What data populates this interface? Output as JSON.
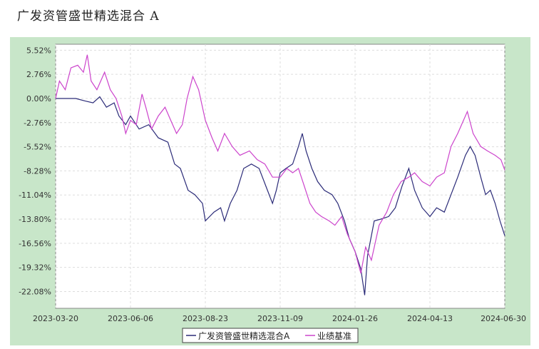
{
  "page": {
    "title": "广发资管盛世精选混合 A"
  },
  "colors": {
    "fund": "#2b2b78",
    "benchmark": "#cc44cc",
    "panel_bg": "#c8e6c9",
    "grid": "#dddddd"
  },
  "chart_data": {
    "type": "line",
    "title": "广发资管盛世精选混合 A",
    "xlabel": "",
    "ylabel": "",
    "x_ticks": [
      "2023-03-20",
      "2023-06-06",
      "2023-08-23",
      "2023-11-09",
      "2024-01-26",
      "2024-04-13",
      "2024-06-30"
    ],
    "y_ticks": [
      "5.52%",
      "2.76%",
      "0.00%",
      "-2.76%",
      "-5.52%",
      "-8.28%",
      "-11.04%",
      "-13.80%",
      "-16.56%",
      "-19.32%",
      "-22.08%"
    ],
    "ylim": [
      -24.0,
      6.2
    ],
    "xlim": [
      "2023-03-20",
      "2024-06-30"
    ],
    "grid": true,
    "legend_position": "bottom-center",
    "series": [
      {
        "name": "广发资管盛世精选混合A",
        "color": "#2b2b78",
        "points": [
          [
            "2023-03-20",
            0.0
          ],
          [
            "2023-03-30",
            0.0
          ],
          [
            "2023-04-10",
            0.0
          ],
          [
            "2023-04-20",
            -0.3
          ],
          [
            "2023-04-28",
            -0.5
          ],
          [
            "2023-05-05",
            0.2
          ],
          [
            "2023-05-12",
            -1.0
          ],
          [
            "2023-05-20",
            -0.5
          ],
          [
            "2023-05-25",
            -2.0
          ],
          [
            "2023-06-01",
            -3.0
          ],
          [
            "2023-06-06",
            -2.0
          ],
          [
            "2023-06-15",
            -3.5
          ],
          [
            "2023-06-25",
            -3.0
          ],
          [
            "2023-07-05",
            -4.5
          ],
          [
            "2023-07-15",
            -5.0
          ],
          [
            "2023-07-22",
            -7.5
          ],
          [
            "2023-07-28",
            -8.0
          ],
          [
            "2023-08-05",
            -10.5
          ],
          [
            "2023-08-12",
            -11.0
          ],
          [
            "2023-08-20",
            -12.0
          ],
          [
            "2023-08-23",
            -14.0
          ],
          [
            "2023-09-01",
            -13.0
          ],
          [
            "2023-09-08",
            -12.5
          ],
          [
            "2023-09-12",
            -14.0
          ],
          [
            "2023-09-18",
            -12.0
          ],
          [
            "2023-09-25",
            -10.5
          ],
          [
            "2023-10-02",
            -8.0
          ],
          [
            "2023-10-10",
            -7.5
          ],
          [
            "2023-10-18",
            -8.0
          ],
          [
            "2023-10-25",
            -10.0
          ],
          [
            "2023-11-01",
            -12.0
          ],
          [
            "2023-11-05",
            -10.5
          ],
          [
            "2023-11-09",
            -8.5
          ],
          [
            "2023-11-15",
            -8.0
          ],
          [
            "2023-11-22",
            -7.5
          ],
          [
            "2023-11-28",
            -5.5
          ],
          [
            "2023-12-02",
            -4.0
          ],
          [
            "2023-12-06",
            -6.0
          ],
          [
            "2023-12-12",
            -8.0
          ],
          [
            "2023-12-18",
            -9.5
          ],
          [
            "2023-12-25",
            -10.5
          ],
          [
            "2024-01-02",
            -11.0
          ],
          [
            "2024-01-08",
            -12.0
          ],
          [
            "2024-01-15",
            -14.0
          ],
          [
            "2024-01-20",
            -16.0
          ],
          [
            "2024-01-26",
            -17.5
          ],
          [
            "2024-02-01",
            -19.5
          ],
          [
            "2024-02-05",
            -22.5
          ],
          [
            "2024-02-08",
            -18.0
          ],
          [
            "2024-02-15",
            -14.0
          ],
          [
            "2024-02-22",
            -13.8
          ],
          [
            "2024-03-01",
            -13.5
          ],
          [
            "2024-03-08",
            -12.5
          ],
          [
            "2024-03-15",
            -10.0
          ],
          [
            "2024-03-22",
            -8.0
          ],
          [
            "2024-03-28",
            -10.5
          ],
          [
            "2024-04-05",
            -12.5
          ],
          [
            "2024-04-13",
            -13.5
          ],
          [
            "2024-04-20",
            -12.5
          ],
          [
            "2024-04-28",
            -13.0
          ],
          [
            "2024-05-05",
            -11.0
          ],
          [
            "2024-05-12",
            -9.0
          ],
          [
            "2024-05-20",
            -6.5
          ],
          [
            "2024-05-25",
            -5.5
          ],
          [
            "2024-05-30",
            -6.5
          ],
          [
            "2024-06-05",
            -9.0
          ],
          [
            "2024-06-10",
            -11.0
          ],
          [
            "2024-06-15",
            -10.5
          ],
          [
            "2024-06-20",
            -12.0
          ],
          [
            "2024-06-25",
            -14.0
          ],
          [
            "2024-06-30",
            -15.7
          ]
        ]
      },
      {
        "name": "业绩基准",
        "color": "#cc44cc",
        "points": [
          [
            "2023-03-20",
            0.0
          ],
          [
            "2023-03-24",
            2.0
          ],
          [
            "2023-03-30",
            1.0
          ],
          [
            "2023-04-05",
            3.5
          ],
          [
            "2023-04-12",
            3.8
          ],
          [
            "2023-04-18",
            3.0
          ],
          [
            "2023-04-22",
            5.0
          ],
          [
            "2023-04-26",
            2.0
          ],
          [
            "2023-05-02",
            1.0
          ],
          [
            "2023-05-10",
            3.0
          ],
          [
            "2023-05-16",
            1.0
          ],
          [
            "2023-05-22",
            0.0
          ],
          [
            "2023-05-28",
            -2.0
          ],
          [
            "2023-06-01",
            -4.0
          ],
          [
            "2023-06-06",
            -2.5
          ],
          [
            "2023-06-12",
            -3.0
          ],
          [
            "2023-06-18",
            0.5
          ],
          [
            "2023-06-22",
            -1.0
          ],
          [
            "2023-06-28",
            -3.5
          ],
          [
            "2023-07-05",
            -2.0
          ],
          [
            "2023-07-12",
            -1.0
          ],
          [
            "2023-07-18",
            -2.5
          ],
          [
            "2023-07-24",
            -4.0
          ],
          [
            "2023-07-30",
            -3.0
          ],
          [
            "2023-08-04",
            0.0
          ],
          [
            "2023-08-10",
            2.5
          ],
          [
            "2023-08-16",
            1.0
          ],
          [
            "2023-08-23",
            -2.5
          ],
          [
            "2023-08-30",
            -4.5
          ],
          [
            "2023-09-05",
            -6.0
          ],
          [
            "2023-09-12",
            -4.0
          ],
          [
            "2023-09-20",
            -5.5
          ],
          [
            "2023-09-28",
            -6.5
          ],
          [
            "2023-10-08",
            -6.0
          ],
          [
            "2023-10-16",
            -7.0
          ],
          [
            "2023-10-24",
            -7.5
          ],
          [
            "2023-11-01",
            -9.0
          ],
          [
            "2023-11-09",
            -9.0
          ],
          [
            "2023-11-16",
            -8.0
          ],
          [
            "2023-11-22",
            -8.5
          ],
          [
            "2023-11-28",
            -8.0
          ],
          [
            "2023-12-04",
            -10.0
          ],
          [
            "2023-12-10",
            -12.0
          ],
          [
            "2023-12-16",
            -13.0
          ],
          [
            "2023-12-22",
            -13.5
          ],
          [
            "2023-12-30",
            -14.0
          ],
          [
            "2024-01-05",
            -14.5
          ],
          [
            "2024-01-12",
            -13.5
          ],
          [
            "2024-01-18",
            -15.5
          ],
          [
            "2024-01-26",
            -17.5
          ],
          [
            "2024-02-01",
            -20.0
          ],
          [
            "2024-02-06",
            -17.0
          ],
          [
            "2024-02-12",
            -18.5
          ],
          [
            "2024-02-20",
            -14.5
          ],
          [
            "2024-02-28",
            -13.0
          ],
          [
            "2024-03-06",
            -11.0
          ],
          [
            "2024-03-14",
            -9.5
          ],
          [
            "2024-03-22",
            -9.0
          ],
          [
            "2024-03-28",
            -8.5
          ],
          [
            "2024-04-05",
            -9.5
          ],
          [
            "2024-04-13",
            -10.0
          ],
          [
            "2024-04-20",
            -9.0
          ],
          [
            "2024-04-28",
            -8.5
          ],
          [
            "2024-05-05",
            -5.5
          ],
          [
            "2024-05-12",
            -4.0
          ],
          [
            "2024-05-18",
            -2.5
          ],
          [
            "2024-05-22",
            -1.5
          ],
          [
            "2024-05-28",
            -4.0
          ],
          [
            "2024-06-05",
            -5.5
          ],
          [
            "2024-06-12",
            -6.0
          ],
          [
            "2024-06-20",
            -6.5
          ],
          [
            "2024-06-26",
            -7.0
          ],
          [
            "2024-06-30",
            -8.2
          ]
        ]
      }
    ]
  }
}
